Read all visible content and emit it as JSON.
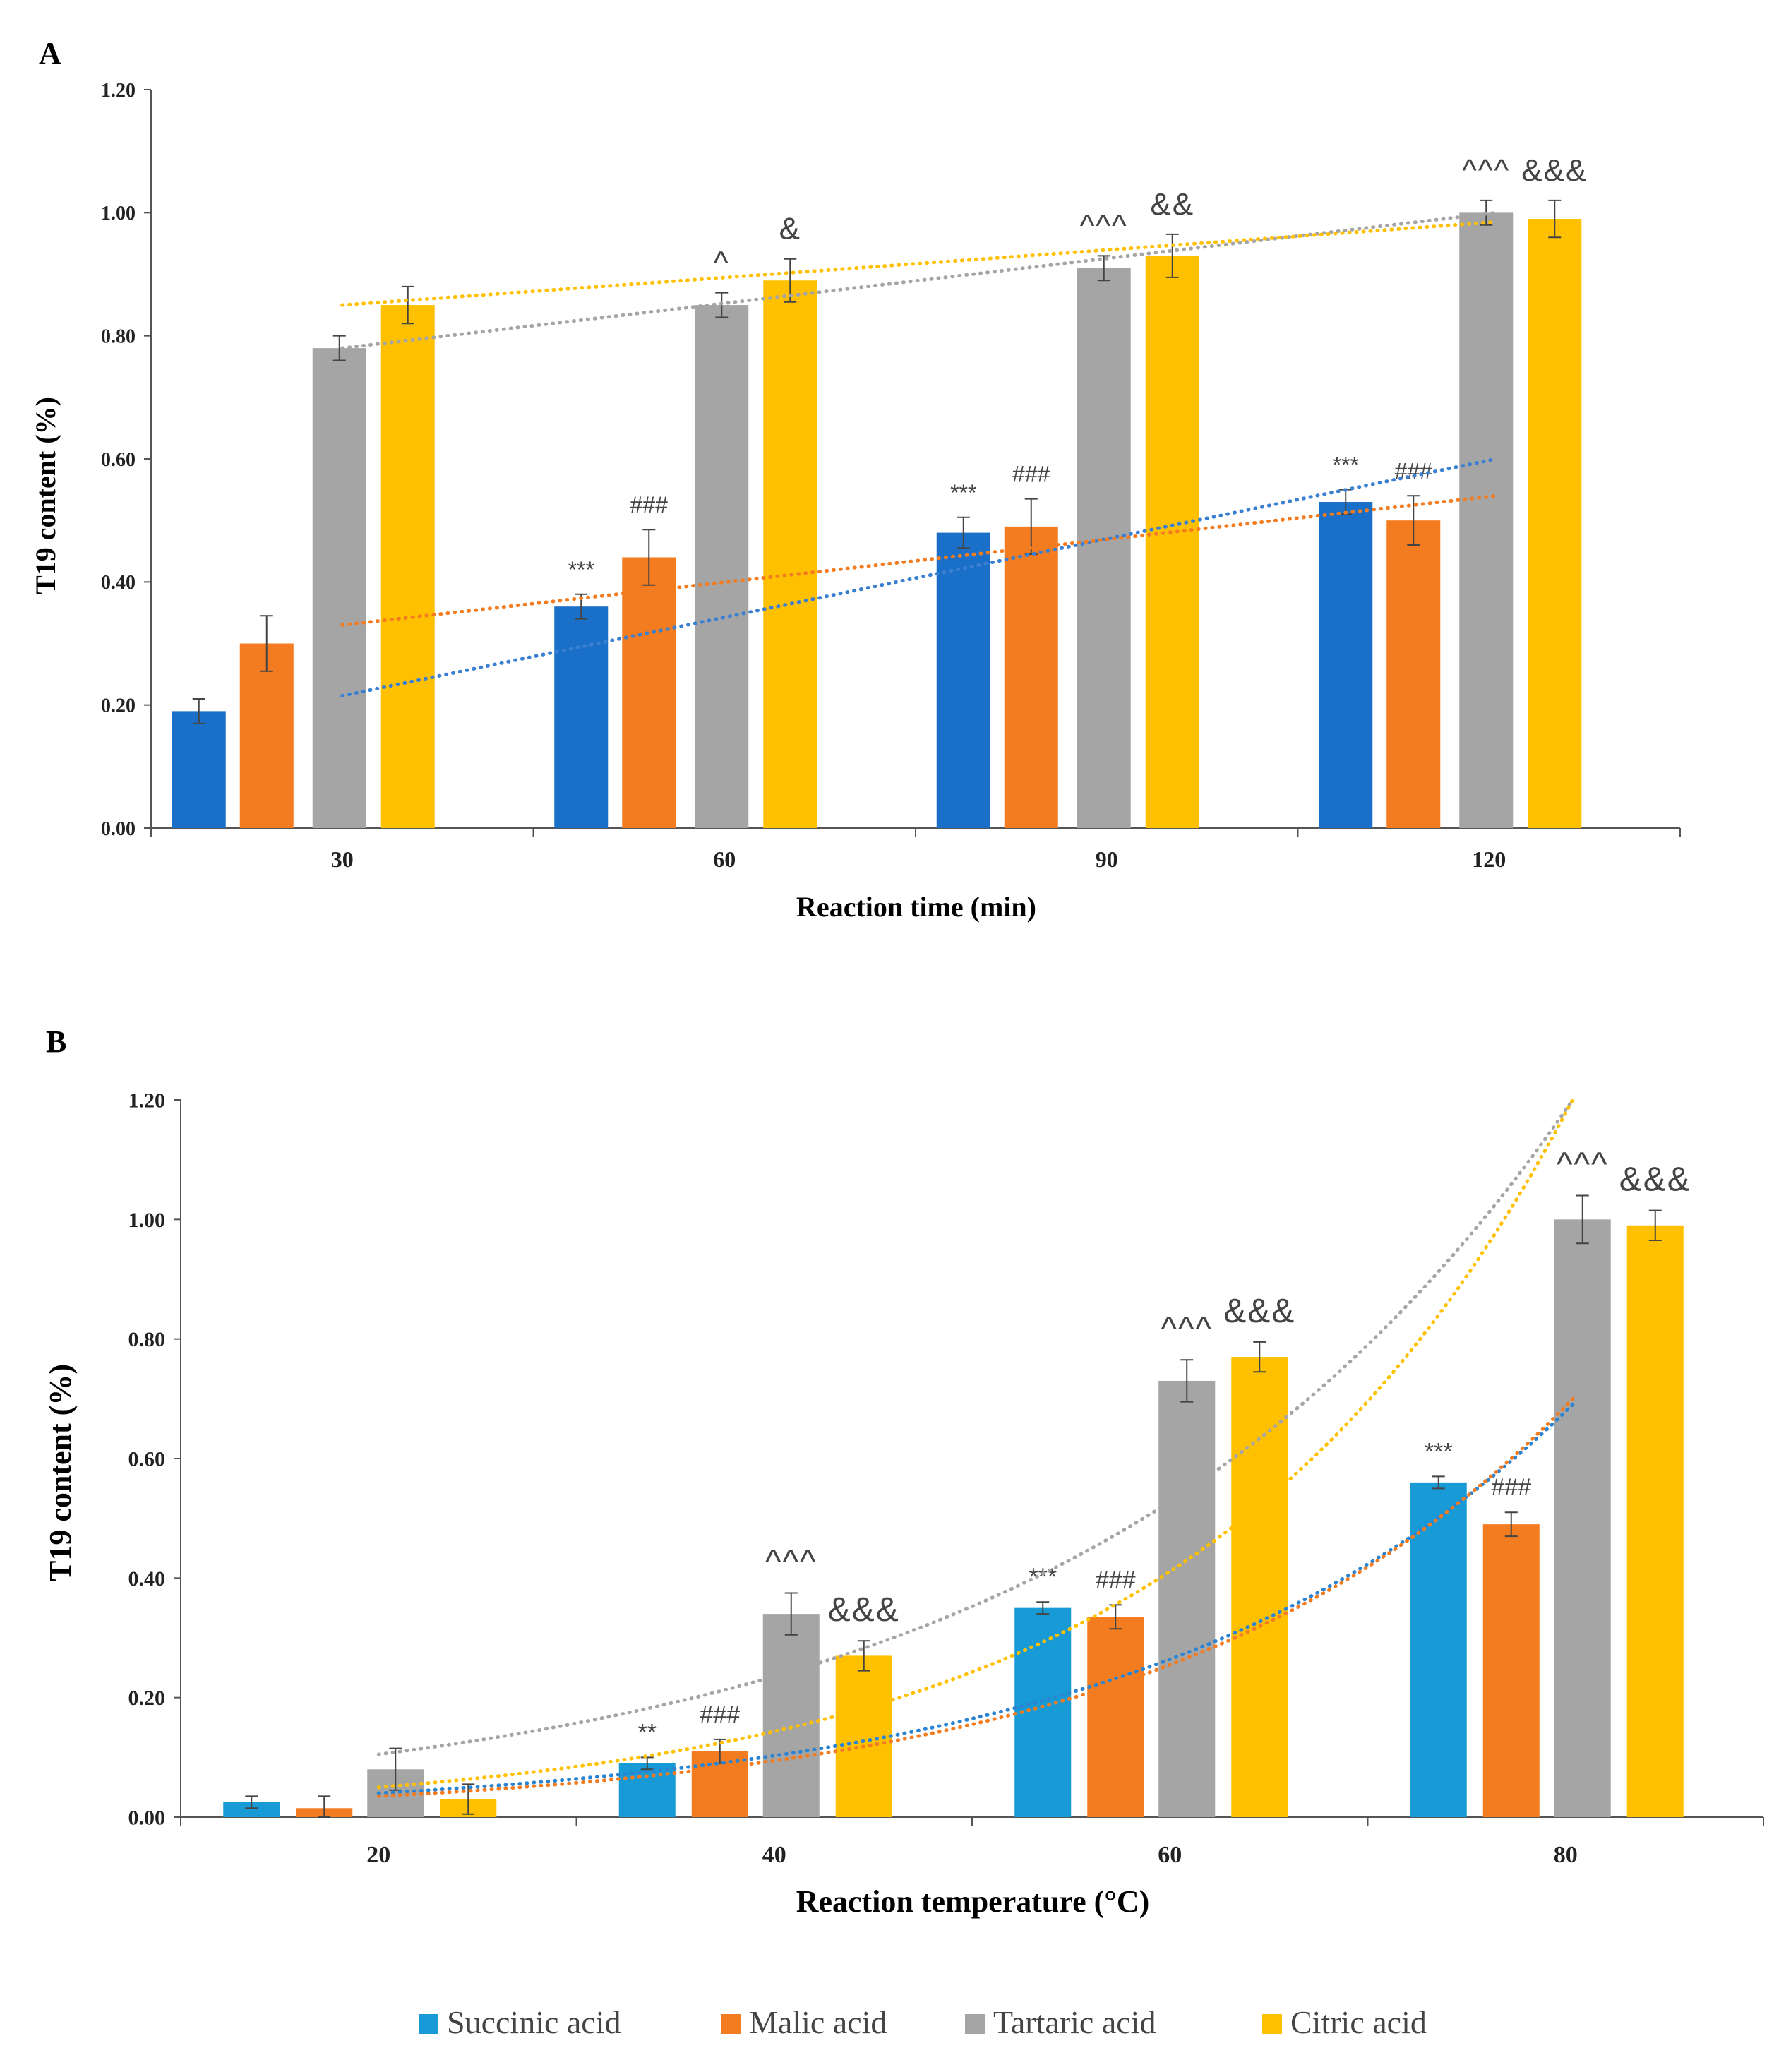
{
  "chart_data": [
    {
      "panel_label": "A",
      "type": "bar",
      "title": "",
      "xlabel": "Reaction time (min)",
      "ylabel": "T19 content (%)",
      "ylim": [
        0,
        1.2
      ],
      "yticks": [
        "0.00",
        "0.20",
        "0.40",
        "0.60",
        "0.80",
        "1.00",
        "1.20"
      ],
      "grid": false,
      "categories": [
        "30",
        "60",
        "90",
        "120"
      ],
      "series": [
        {
          "name": "Succinic acid",
          "color": "#1a70c8",
          "values": [
            0.19,
            0.36,
            0.48,
            0.53
          ],
          "errors": [
            0.02,
            0.02,
            0.025,
            0.02
          ],
          "annotations": [
            "",
            "***",
            "***",
            "***"
          ],
          "trend": {
            "kind": "linear",
            "start": 0.215,
            "end": 0.6,
            "color": "#3a7fd0"
          }
        },
        {
          "name": "Malic acid",
          "color": "#f47c20",
          "values": [
            0.3,
            0.44,
            0.49,
            0.5
          ],
          "errors": [
            0.045,
            0.045,
            0.045,
            0.04
          ],
          "annotations": [
            "",
            "###",
            "###",
            "###"
          ],
          "trend": {
            "kind": "linear",
            "start": 0.33,
            "end": 0.54,
            "color": "#f47c20"
          }
        },
        {
          "name": "Tartaric acid",
          "color": "#a5a5a5",
          "values": [
            0.78,
            0.85,
            0.91,
            1.0
          ],
          "errors": [
            0.02,
            0.02,
            0.02,
            0.02
          ],
          "annotations": [
            "",
            "^",
            "^^^",
            "^^^"
          ],
          "trend": {
            "kind": "linear",
            "start": 0.78,
            "end": 1.0,
            "color": "#a5a5a5"
          }
        },
        {
          "name": "Citric acid",
          "color": "#ffc000",
          "values": [
            0.85,
            0.89,
            0.93,
            0.99
          ],
          "errors": [
            0.03,
            0.035,
            0.035,
            0.03
          ],
          "annotations": [
            "",
            "&",
            "&&",
            "&&&"
          ],
          "trend": {
            "kind": "linear",
            "start": 0.85,
            "end": 0.985,
            "color": "#ffc000"
          }
        }
      ]
    },
    {
      "panel_label": "B",
      "type": "bar",
      "title": "",
      "xlabel": "Reaction temperature (°C)",
      "ylabel": "T19 content (%)",
      "ylim": [
        0,
        1.2
      ],
      "yticks": [
        "0.00",
        "0.20",
        "0.40",
        "0.60",
        "0.80",
        "1.00",
        "1.20"
      ],
      "grid": false,
      "categories": [
        "20",
        "40",
        "60",
        "80"
      ],
      "series": [
        {
          "name": "Succinic acid",
          "color": "#179ad6",
          "values": [
            0.025,
            0.09,
            0.35,
            0.56
          ],
          "errors": [
            0.01,
            0.01,
            0.01,
            0.01
          ],
          "annotations": [
            "",
            "**",
            "***",
            "***"
          ],
          "trend": {
            "kind": "exponential",
            "start": 0.04,
            "end": 0.69,
            "color": "#2a84d2"
          }
        },
        {
          "name": "Malic acid",
          "color": "#f47c20",
          "values": [
            0.015,
            0.11,
            0.335,
            0.49
          ],
          "errors": [
            0.02,
            0.02,
            0.02,
            0.02
          ],
          "annotations": [
            "",
            "###",
            "###",
            "###"
          ],
          "trend": {
            "kind": "exponential",
            "start": 0.035,
            "end": 0.7,
            "color": "#f47c20"
          }
        },
        {
          "name": "Tartaric acid",
          "color": "#a5a5a5",
          "values": [
            0.08,
            0.34,
            0.73,
            1.0
          ],
          "errors": [
            0.035,
            0.035,
            0.035,
            0.04
          ],
          "annotations": [
            "",
            "^^^",
            "^^^",
            "^^^"
          ],
          "trend": {
            "kind": "exponential",
            "start": 0.105,
            "end": 1.2,
            "color": "#a5a5a5"
          }
        },
        {
          "name": "Citric acid",
          "color": "#ffc000",
          "values": [
            0.03,
            0.27,
            0.77,
            0.99
          ],
          "errors": [
            0.025,
            0.025,
            0.025,
            0.025
          ],
          "annotations": [
            "",
            "&&&",
            "&&&",
            "&&&"
          ],
          "trend": {
            "kind": "exponential",
            "start": 0.05,
            "end": 1.2,
            "color": "#ffc000"
          }
        }
      ]
    }
  ],
  "legend": {
    "position": "bottom-center",
    "items": [
      {
        "name": "Succinic acid",
        "color": "#179ad6"
      },
      {
        "name": "Malic acid",
        "color": "#f47c20"
      },
      {
        "name": "Tartaric acid",
        "color": "#a5a5a5"
      },
      {
        "name": "Citric acid",
        "color": "#ffc000"
      }
    ]
  }
}
